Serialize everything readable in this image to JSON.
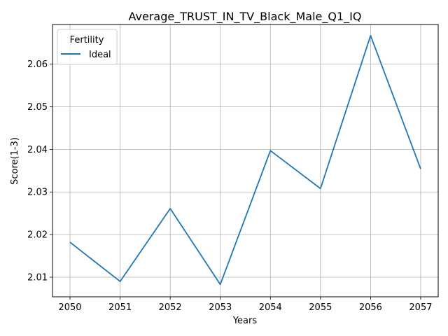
{
  "chart_data": {
    "type": "line",
    "title": "Average_TRUST_IN_TV_Black_Male_Q1_IQ",
    "xlabel": "Years",
    "ylabel": "Score(1-3)",
    "x": [
      2050,
      2051,
      2052,
      2053,
      2054,
      2055,
      2056,
      2057
    ],
    "xlim": [
      2049.65,
      2057.35
    ],
    "ylim": [
      2.0054,
      2.0693
    ],
    "yticks": [
      2.01,
      2.02,
      2.03,
      2.04,
      2.05,
      2.06
    ],
    "ytick_labels": [
      "2.01",
      "2.02",
      "2.03",
      "2.04",
      "2.05",
      "2.06"
    ],
    "xtick_labels": [
      "2050",
      "2051",
      "2052",
      "2053",
      "2054",
      "2055",
      "2056",
      "2057"
    ],
    "grid": true,
    "legend": {
      "title": "Fertility",
      "placement": "top-left"
    },
    "series": [
      {
        "name": "Ideal",
        "color": "#1f77b4",
        "values": [
          2.0182,
          2.009,
          2.0261,
          2.0083,
          2.0397,
          2.0308,
          2.0667,
          2.0354
        ]
      }
    ]
  }
}
